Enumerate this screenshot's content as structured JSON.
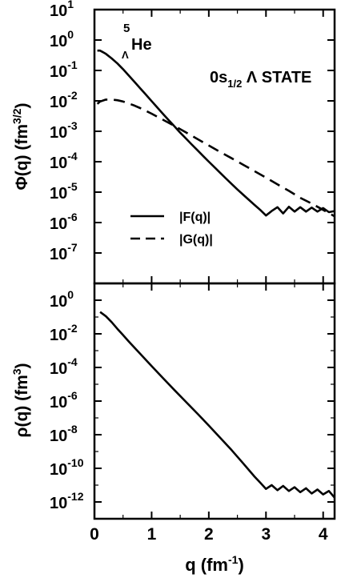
{
  "chart_data": [
    {
      "type": "line",
      "panel": "top",
      "ylabel_main": "Φ(q) (fm",
      "ylabel_sup": "3/2",
      "ylabel_close": ")",
      "yscale": "log",
      "ylim": [
        1e-08,
        10
      ],
      "xlim": [
        0,
        4.2
      ],
      "y_ticks": [
        {
          "value": 10.0,
          "base": "10",
          "exp": "1"
        },
        {
          "value": 1.0,
          "base": "10",
          "exp": "0"
        },
        {
          "value": 0.1,
          "base": "10",
          "exp": "-1"
        },
        {
          "value": 0.01,
          "base": "10",
          "exp": "-2"
        },
        {
          "value": 0.001,
          "base": "10",
          "exp": "-3"
        },
        {
          "value": 0.0001,
          "base": "10",
          "exp": "-4"
        },
        {
          "value": 1e-05,
          "base": "10",
          "exp": "-5"
        },
        {
          "value": 1e-06,
          "base": "10",
          "exp": "-6"
        },
        {
          "value": 1e-07,
          "base": "10",
          "exp": "-7"
        }
      ],
      "annotation_nucleus": {
        "sup": "5",
        "sub": "Λ",
        "text": "He"
      },
      "annotation_state": {
        "pre": "0s",
        "sub": "1/2",
        "post": " Λ STATE"
      },
      "legend": {
        "placement": "lower-left"
      },
      "series": [
        {
          "name": "|F(q)|",
          "style": "solid",
          "x": [
            0.05,
            0.1,
            0.2,
            0.3,
            0.4,
            0.5,
            0.6,
            0.7,
            0.8,
            0.9,
            1.0,
            1.1,
            1.2,
            1.3,
            1.4,
            1.5,
            1.6,
            1.7,
            1.8,
            1.9,
            2.0,
            2.1,
            2.2,
            2.3,
            2.4,
            2.5,
            2.6,
            2.7,
            2.8,
            2.9,
            3.0,
            3.1,
            3.2,
            3.3,
            3.4,
            3.5,
            3.6,
            3.7,
            3.8,
            3.9,
            4.0,
            4.1,
            4.2
          ],
          "values": [
            0.45,
            0.45,
            0.35,
            0.25,
            0.17,
            0.11,
            0.068,
            0.042,
            0.026,
            0.016,
            0.0098,
            0.006,
            0.0037,
            0.0023,
            0.00145,
            0.0009,
            0.00058,
            0.00037,
            0.00024,
            0.000155,
            0.0001,
            6.6e-05,
            4.3e-05,
            2.8e-05,
            1.85e-05,
            1.22e-05,
            8.3e-06,
            5.6e-06,
            3.8e-06,
            2.6e-06,
            1.7e-06,
            2.4e-06,
            3.2e-06,
            2e-06,
            3.3e-06,
            2.3e-06,
            3.2e-06,
            2.3e-06,
            3.1e-06,
            2.3e-06,
            3e-06,
            2.2e-06,
            2.4e-06
          ]
        },
        {
          "name": "|G(q)|",
          "style": "dashed",
          "x": [
            0.05,
            0.1,
            0.2,
            0.3,
            0.4,
            0.5,
            0.6,
            0.7,
            0.8,
            0.9,
            1.0,
            1.2,
            1.4,
            1.6,
            1.8,
            2.0,
            2.2,
            2.4,
            2.6,
            2.8,
            3.0,
            3.2,
            3.4,
            3.6,
            3.8,
            4.0,
            4.2
          ],
          "values": [
            0.008,
            0.0095,
            0.011,
            0.011,
            0.0105,
            0.0095,
            0.0082,
            0.007,
            0.0058,
            0.0047,
            0.0038,
            0.0024,
            0.0015,
            0.00092,
            0.00056,
            0.00034,
            0.00021,
            0.00013,
            8e-05,
            4.9e-05,
            3e-05,
            1.8e-05,
            1.1e-05,
            6.5e-06,
            4.2e-06,
            2.6e-06,
            1.6e-06
          ]
        }
      ]
    },
    {
      "type": "line",
      "panel": "bottom",
      "ylabel_main": "ρ(q) (fm",
      "ylabel_sup": "3",
      "ylabel_close": ")",
      "xlabel_main": "q (fm",
      "xlabel_sup": "-1",
      "xlabel_close": ")",
      "yscale": "log",
      "ylim": [
        1e-13,
        10
      ],
      "xlim": [
        0,
        4.2
      ],
      "x_ticks": [
        {
          "value": 0,
          "label": "0"
        },
        {
          "value": 1,
          "label": "1"
        },
        {
          "value": 2,
          "label": "2"
        },
        {
          "value": 3,
          "label": "3"
        },
        {
          "value": 4,
          "label": "4"
        }
      ],
      "y_ticks": [
        {
          "value": 1.0,
          "base": "10",
          "exp": "0"
        },
        {
          "value": 0.01,
          "base": "10",
          "exp": "-2"
        },
        {
          "value": 0.0001,
          "base": "10",
          "exp": "-4"
        },
        {
          "value": 1e-06,
          "base": "10",
          "exp": "-6"
        },
        {
          "value": 1e-08,
          "base": "10",
          "exp": "-8"
        },
        {
          "value": 1e-10,
          "base": "10",
          "exp": "-10"
        },
        {
          "value": 1e-12,
          "base": "10",
          "exp": "-12"
        }
      ],
      "series": [
        {
          "style": "solid",
          "x": [
            0.1,
            0.2,
            0.3,
            0.4,
            0.5,
            0.6,
            0.8,
            1.0,
            1.2,
            1.4,
            1.6,
            1.8,
            2.0,
            2.2,
            2.4,
            2.6,
            2.8,
            2.9,
            3.0,
            3.1,
            3.2,
            3.3,
            3.4,
            3.5,
            3.6,
            3.7,
            3.8,
            3.9,
            4.0,
            4.1,
            4.2
          ],
          "values": [
            0.2,
            0.11,
            0.05,
            0.02,
            0.0085,
            0.0035,
            0.00065,
            0.00012,
            2.3e-05,
            4.5e-06,
            9e-07,
            1.8e-07,
            3.5e-08,
            6.5e-09,
            1.2e-09,
            2e-10,
            3.2e-11,
            1.4e-11,
            6e-12,
            1e-11,
            5e-12,
            9e-12,
            4.5e-12,
            7.5e-12,
            3.8e-12,
            6.5e-12,
            3.2e-12,
            5.5e-12,
            2.8e-12,
            4.5e-12,
            1.8e-12
          ]
        }
      ]
    }
  ],
  "legend_labels": {
    "F": "|F(q)|",
    "G": "|G(q)|"
  }
}
